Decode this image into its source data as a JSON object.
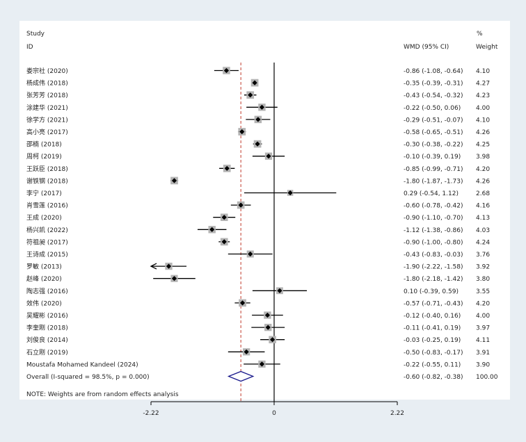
{
  "chart_data": {
    "type": "forest",
    "headers": {
      "study_line1": "Study",
      "study_line2": "ID",
      "effect": "WMD (95% CI)",
      "weight_line1": "%",
      "weight_line2": "Weight"
    },
    "studies": [
      {
        "name": "娄宗社 (2020)",
        "wmd": -0.86,
        "lo": -1.08,
        "hi": -0.64,
        "ci_text": "-0.86 (-1.08, -0.64)",
        "weight": 4.1,
        "weight_text": "4.10"
      },
      {
        "name": "杨成伟 (2018)",
        "wmd": -0.35,
        "lo": -0.39,
        "hi": -0.31,
        "ci_text": "-0.35 (-0.39, -0.31)",
        "weight": 4.27,
        "weight_text": "4.27"
      },
      {
        "name": "张芳芳 (2018)",
        "wmd": -0.43,
        "lo": -0.54,
        "hi": -0.32,
        "ci_text": "-0.43 (-0.54, -0.32)",
        "weight": 4.23,
        "weight_text": "4.23"
      },
      {
        "name": "涂建华 (2021)",
        "wmd": -0.22,
        "lo": -0.5,
        "hi": 0.06,
        "ci_text": "-0.22 (-0.50, 0.06)",
        "weight": 4.0,
        "weight_text": "4.00"
      },
      {
        "name": "徐学方 (2021)",
        "wmd": -0.29,
        "lo": -0.51,
        "hi": -0.07,
        "ci_text": "-0.29 (-0.51, -0.07)",
        "weight": 4.1,
        "weight_text": "4.10"
      },
      {
        "name": "高小亮 (2017)",
        "wmd": -0.58,
        "lo": -0.65,
        "hi": -0.51,
        "ci_text": "-0.58 (-0.65, -0.51)",
        "weight": 4.26,
        "weight_text": "4.26"
      },
      {
        "name": "邵楠 (2018)",
        "wmd": -0.3,
        "lo": -0.38,
        "hi": -0.22,
        "ci_text": "-0.30 (-0.38, -0.22)",
        "weight": 4.25,
        "weight_text": "4.25"
      },
      {
        "name": "周柯 (2019)",
        "wmd": -0.1,
        "lo": -0.39,
        "hi": 0.19,
        "ci_text": "-0.10 (-0.39, 0.19)",
        "weight": 3.98,
        "weight_text": "3.98"
      },
      {
        "name": "王跃臣 (2018)",
        "wmd": -0.85,
        "lo": -0.99,
        "hi": -0.71,
        "ci_text": "-0.85 (-0.99, -0.71)",
        "weight": 4.2,
        "weight_text": "4.20"
      },
      {
        "name": "谢铁钢 (2018)",
        "wmd": -1.8,
        "lo": -1.87,
        "hi": -1.73,
        "ci_text": "-1.80 (-1.87, -1.73)",
        "weight": 4.26,
        "weight_text": "4.26"
      },
      {
        "name": "李宁 (2017)",
        "wmd": 0.29,
        "lo": -0.54,
        "hi": 1.12,
        "ci_text": "0.29 (-0.54, 1.12)",
        "weight": 2.68,
        "weight_text": "2.68"
      },
      {
        "name": "肖雪莲 (2016)",
        "wmd": -0.6,
        "lo": -0.78,
        "hi": -0.42,
        "ci_text": "-0.60 (-0.78, -0.42)",
        "weight": 4.16,
        "weight_text": "4.16"
      },
      {
        "name": "王成 (2020)",
        "wmd": -0.9,
        "lo": -1.1,
        "hi": -0.7,
        "ci_text": "-0.90 (-1.10, -0.70)",
        "weight": 4.13,
        "weight_text": "4.13"
      },
      {
        "name": "杨兴凯 (2022)",
        "wmd": -1.12,
        "lo": -1.38,
        "hi": -0.86,
        "ci_text": "-1.12 (-1.38, -0.86)",
        "weight": 4.03,
        "weight_text": "4.03"
      },
      {
        "name": "符祖昶 (2017)",
        "wmd": -0.9,
        "lo": -1.0,
        "hi": -0.8,
        "ci_text": "-0.90 (-1.00, -0.80)",
        "weight": 4.24,
        "weight_text": "4.24"
      },
      {
        "name": "王诗成 (2015)",
        "wmd": -0.43,
        "lo": -0.83,
        "hi": -0.03,
        "ci_text": "-0.43 (-0.83, -0.03)",
        "weight": 3.76,
        "weight_text": "3.76"
      },
      {
        "name": "罗敏 (2013)",
        "wmd": -1.9,
        "lo": -2.22,
        "hi": -1.58,
        "ci_text": "-1.90 (-2.22, -1.58)",
        "weight": 3.92,
        "weight_text": "3.92"
      },
      {
        "name": "赵峰 (2020)",
        "wmd": -1.8,
        "lo": -2.18,
        "hi": -1.42,
        "ci_text": "-1.80 (-2.18, -1.42)",
        "weight": 3.8,
        "weight_text": "3.80"
      },
      {
        "name": "陶志强 (2016)",
        "wmd": 0.1,
        "lo": -0.39,
        "hi": 0.59,
        "ci_text": "0.10 (-0.39, 0.59)",
        "weight": 3.55,
        "weight_text": "3.55"
      },
      {
        "name": "效伟 (2020)",
        "wmd": -0.57,
        "lo": -0.71,
        "hi": -0.43,
        "ci_text": "-0.57 (-0.71, -0.43)",
        "weight": 4.2,
        "weight_text": "4.20"
      },
      {
        "name": "吴耀彬 (2016)",
        "wmd": -0.12,
        "lo": -0.4,
        "hi": 0.16,
        "ci_text": "-0.12 (-0.40, 0.16)",
        "weight": 4.0,
        "weight_text": "4.00"
      },
      {
        "name": "李奎刚 (2018)",
        "wmd": -0.11,
        "lo": -0.41,
        "hi": 0.19,
        "ci_text": "-0.11 (-0.41, 0.19)",
        "weight": 3.97,
        "weight_text": "3.97"
      },
      {
        "name": "刘俊良 (2014)",
        "wmd": -0.03,
        "lo": -0.25,
        "hi": 0.19,
        "ci_text": "-0.03 (-0.25, 0.19)",
        "weight": 4.11,
        "weight_text": "4.11"
      },
      {
        "name": "石立刚 (2019)",
        "wmd": -0.5,
        "lo": -0.83,
        "hi": -0.17,
        "ci_text": "-0.50 (-0.83, -0.17)",
        "weight": 3.91,
        "weight_text": "3.91"
      },
      {
        "name": "Moustafa Mohamed Kandeel  (2024)",
        "wmd": -0.22,
        "lo": -0.55,
        "hi": 0.11,
        "ci_text": "-0.22 (-0.55, 0.11)",
        "weight": 3.9,
        "weight_text": "3.90"
      }
    ],
    "overall": {
      "label": "Overall  (I-squared = 98.5%, p = 0.000)",
      "wmd": -0.6,
      "lo": -0.82,
      "hi": -0.38,
      "ci_text": "-0.60 (-0.82, -0.38)",
      "weight_text": "100.00"
    },
    "note": "NOTE: Weights are from random effects analysis",
    "x_ticks": [
      {
        "value": -2.22,
        "label": "-2.22"
      },
      {
        "value": 0,
        "label": "0"
      },
      {
        "value": 2.22,
        "label": "2.22"
      }
    ],
    "xlim": [
      -2.22,
      2.22
    ],
    "colors": {
      "background": "#e8eef3",
      "panel": "#ffffff",
      "box": "#b4b4b4",
      "marker": "#000000",
      "overall_diamond": "#1a1a8c",
      "overall_line": "#c0392b"
    }
  }
}
